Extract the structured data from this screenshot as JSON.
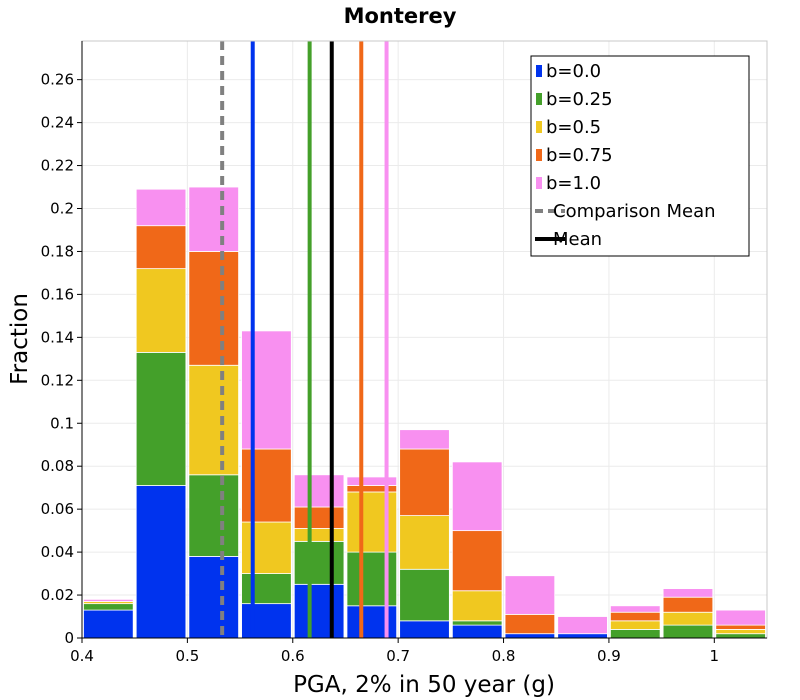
{
  "chart_data": {
    "type": "bar",
    "stacked": true,
    "title": "Monterey",
    "xlabel": "PGA, 2% in 50 year (g)",
    "ylabel": "Fraction",
    "xlim": [
      0.4,
      1.05
    ],
    "ylim": [
      0,
      0.278
    ],
    "grid": true,
    "legend_position": "top-right",
    "bar_width": 0.05,
    "bin_centers": [
      0.425,
      0.475,
      0.525,
      0.575,
      0.625,
      0.675,
      0.725,
      0.775,
      0.825,
      0.875,
      0.925,
      0.975,
      1.025
    ],
    "series": [
      {
        "name": "b=0.0",
        "color": "#0033ee",
        "values": [
          0.013,
          0.071,
          0.038,
          0.016,
          0.025,
          0.015,
          0.008,
          0.006,
          0.002,
          0.002,
          0.0,
          0.0,
          0.0
        ]
      },
      {
        "name": "b=0.25",
        "color": "#44a02a",
        "values": [
          0.003,
          0.062,
          0.038,
          0.014,
          0.02,
          0.025,
          0.024,
          0.002,
          0.0,
          0.0,
          0.004,
          0.006,
          0.002
        ]
      },
      {
        "name": "b=0.5",
        "color": "#f0c820",
        "values": [
          0.001,
          0.039,
          0.051,
          0.024,
          0.006,
          0.028,
          0.025,
          0.014,
          0.0,
          0.0,
          0.004,
          0.006,
          0.002
        ]
      },
      {
        "name": "b=0.75",
        "color": "#f06818",
        "values": [
          0.0,
          0.02,
          0.053,
          0.034,
          0.01,
          0.003,
          0.031,
          0.028,
          0.009,
          0.0,
          0.004,
          0.007,
          0.002
        ]
      },
      {
        "name": "b=1.0",
        "color": "#f890f0",
        "values": [
          0.001,
          0.017,
          0.03,
          0.055,
          0.015,
          0.004,
          0.009,
          0.032,
          0.018,
          0.008,
          0.003,
          0.004,
          0.007
        ]
      }
    ],
    "vertical_lines": [
      {
        "name": "Comparison Mean",
        "x": 0.533,
        "color": "#808080",
        "style": "dashed"
      },
      {
        "name": "Mean",
        "x": 0.637,
        "color": "#000000",
        "style": "solid"
      },
      {
        "series": "b=0.0",
        "x": 0.562,
        "color": "#0033ee",
        "style": "solid"
      },
      {
        "series": "b=0.25",
        "x": 0.616,
        "color": "#44a02a",
        "style": "solid"
      },
      {
        "series": "b=0.75",
        "x": 0.665,
        "color": "#f06818",
        "style": "solid"
      },
      {
        "series": "b=1.0",
        "x": 0.689,
        "color": "#f890f0",
        "style": "solid"
      }
    ],
    "xticks": [
      {
        "value": 0.4,
        "label": "0.4"
      },
      {
        "value": 0.5,
        "label": "0.5"
      },
      {
        "value": 0.6,
        "label": "0.6"
      },
      {
        "value": 0.7,
        "label": "0.7"
      },
      {
        "value": 0.8,
        "label": "0.8"
      },
      {
        "value": 0.9,
        "label": "0.9"
      },
      {
        "value": 1.0,
        "label": "1"
      }
    ],
    "yticks": [
      {
        "value": 0,
        "label": "0"
      },
      {
        "value": 0.02,
        "label": "0.02"
      },
      {
        "value": 0.04,
        "label": "0.04"
      },
      {
        "value": 0.06,
        "label": "0.06"
      },
      {
        "value": 0.08,
        "label": "0.08"
      },
      {
        "value": 0.1,
        "label": "0.1"
      },
      {
        "value": 0.12,
        "label": "0.12"
      },
      {
        "value": 0.14,
        "label": "0.14"
      },
      {
        "value": 0.16,
        "label": "0.16"
      },
      {
        "value": 0.18,
        "label": "0.18"
      },
      {
        "value": 0.2,
        "label": "0.2"
      },
      {
        "value": 0.22,
        "label": "0.22"
      },
      {
        "value": 0.24,
        "label": "0.24"
      },
      {
        "value": 0.26,
        "label": "0.26"
      }
    ],
    "legend": [
      {
        "label": "b=0.0",
        "color": "#0033ee",
        "kind": "box"
      },
      {
        "label": "b=0.25",
        "color": "#44a02a",
        "kind": "box"
      },
      {
        "label": "b=0.5",
        "color": "#f0c820",
        "kind": "box"
      },
      {
        "label": "b=0.75",
        "color": "#f06818",
        "kind": "box"
      },
      {
        "label": "b=1.0",
        "color": "#f890f0",
        "kind": "box"
      },
      {
        "label": "Comparison Mean",
        "color": "#808080",
        "kind": "dashed-line"
      },
      {
        "label": "Mean",
        "color": "#000000",
        "kind": "solid-line"
      }
    ]
  }
}
